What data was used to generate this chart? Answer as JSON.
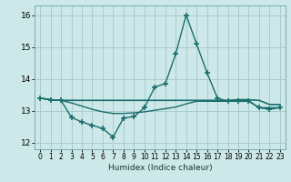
{
  "xlabel": "Humidex (Indice chaleur)",
  "background_color": "#cde8e8",
  "grid_color": "#aacccc",
  "line_color": "#1a6e6e",
  "xlim": [
    -0.5,
    23.5
  ],
  "ylim": [
    11.8,
    16.3
  ],
  "yticks": [
    12,
    13,
    14,
    15,
    16
  ],
  "xticks": [
    0,
    1,
    2,
    3,
    4,
    5,
    6,
    7,
    8,
    9,
    10,
    11,
    12,
    13,
    14,
    15,
    16,
    17,
    18,
    19,
    20,
    21,
    22,
    23
  ],
  "line1_x": [
    0,
    1,
    2,
    3,
    4,
    5,
    6,
    7,
    8,
    9,
    10,
    11,
    12,
    13,
    14,
    15,
    16,
    17,
    18,
    19,
    20,
    21,
    22,
    23
  ],
  "line1_y": [
    13.4,
    13.35,
    13.33,
    13.33,
    13.33,
    13.33,
    13.33,
    13.33,
    13.33,
    13.33,
    13.33,
    13.33,
    13.33,
    13.33,
    13.33,
    13.33,
    13.33,
    13.33,
    13.33,
    13.35,
    13.35,
    13.33,
    13.2,
    13.2
  ],
  "line2_x": [
    0,
    1,
    2,
    3,
    4,
    5,
    6,
    7,
    8,
    9,
    10,
    11,
    12,
    13,
    14,
    15,
    16,
    17,
    18,
    19,
    20,
    21,
    22,
    23
  ],
  "line2_y": [
    13.4,
    13.35,
    13.33,
    12.8,
    12.65,
    12.55,
    12.45,
    12.18,
    12.78,
    12.82,
    13.1,
    13.75,
    13.85,
    14.78,
    16.0,
    15.1,
    14.2,
    13.4,
    13.3,
    13.3,
    13.3,
    13.1,
    13.05,
    13.1
  ],
  "line3_x": [
    0,
    1,
    2,
    3,
    4,
    5,
    6,
    7,
    8,
    9,
    10,
    11,
    12,
    13,
    14,
    15,
    16,
    17,
    18,
    19,
    20,
    21,
    22,
    23
  ],
  "line3_y": [
    13.4,
    13.35,
    13.33,
    13.25,
    13.15,
    13.05,
    12.97,
    12.92,
    12.92,
    12.94,
    12.97,
    13.02,
    13.07,
    13.12,
    13.22,
    13.3,
    13.3,
    13.3,
    13.3,
    13.32,
    13.32,
    13.1,
    13.1,
    13.1
  ]
}
